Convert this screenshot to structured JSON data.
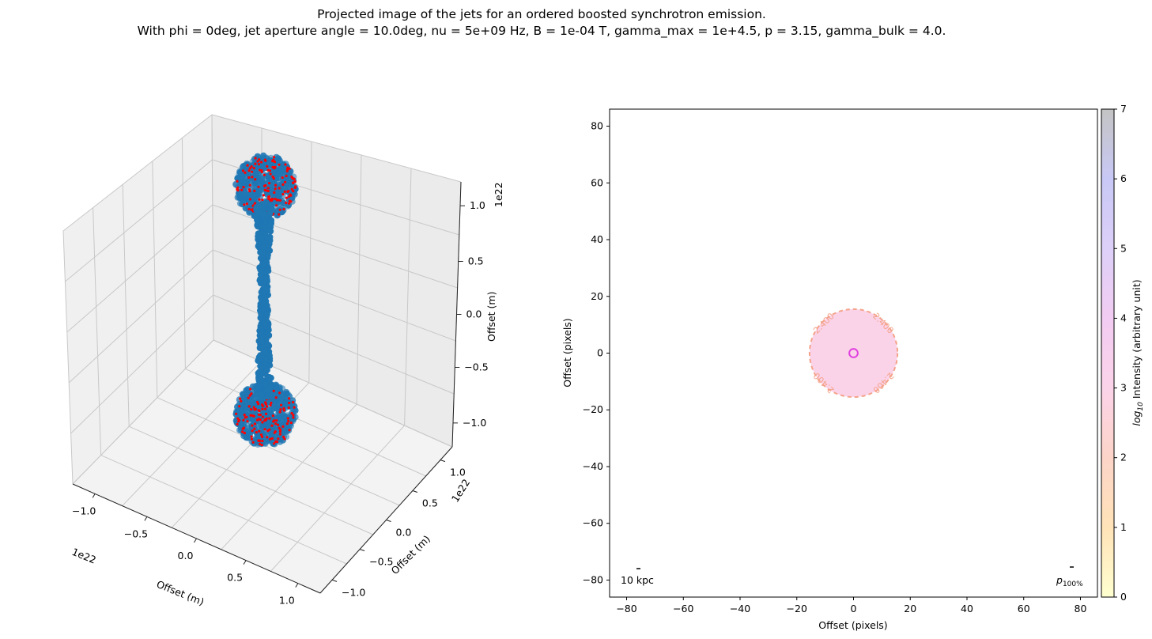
{
  "figure": {
    "title_line1": "Projected image of the jets for an ordered boosted synchrotron emission.",
    "title_line2": "With phi = 0deg, jet aperture angle = 10.0deg, nu = 5e+09 Hz, B = 1e-04 T, gamma_max = 1e+4.5, p = 3.15, gamma_bulk = 4.0."
  },
  "chart_data": [
    {
      "type": "scatter3d",
      "title": "",
      "xlabel": "Offset (m)",
      "ylabel": "Offset (m)",
      "zlabel": "Offset (m)",
      "x_offset_label": "1e22",
      "y_offset_label": "1e22",
      "z_offset_label": "1e22",
      "x_ticks": [
        "−1.0",
        "−0.5",
        "0.0",
        "0.5",
        "1.0"
      ],
      "y_ticks": [
        "−1.0",
        "−0.5",
        "0.0",
        "0.5",
        "1.0"
      ],
      "z_ticks": [
        "−1.0",
        "−0.5",
        "0.0",
        "0.5",
        "1.0"
      ],
      "xlim": [
        -1.1,
        1.1
      ],
      "ylim": [
        -1.1,
        1.1
      ],
      "zlim": [
        -1.1,
        1.1
      ],
      "series": [
        {
          "name": "jet particles",
          "color": "#1f77b4",
          "description_units": "1e22 m",
          "components": [
            {
              "kind": "lobe",
              "z_center": 0.72,
              "radius": 0.28
            },
            {
              "kind": "stem",
              "z_from": -0.55,
              "z_to": 0.55
            },
            {
              "kind": "lobe",
              "z_center": -0.72,
              "radius": 0.28
            }
          ]
        },
        {
          "name": "emitting particles",
          "color": "#ff0000"
        }
      ]
    },
    {
      "type": "heatmap",
      "title": "",
      "xlabel": "Offset (pixels)",
      "ylabel": "Offset (pixels)",
      "xlim": [
        -86,
        86
      ],
      "ylim": [
        -86,
        86
      ],
      "x_ticks": [
        -80,
        -60,
        -40,
        -20,
        0,
        20,
        40,
        60,
        80
      ],
      "y_ticks": [
        -80,
        -60,
        -40,
        -20,
        0,
        20,
        40,
        60,
        80
      ],
      "x_tick_labels": [
        "−80",
        "−60",
        "−40",
        "−20",
        "0",
        "20",
        "40",
        "60",
        "80"
      ],
      "y_tick_labels": [
        "−80",
        "−60",
        "−40",
        "−20",
        "0",
        "20",
        "40",
        "60",
        "80"
      ],
      "emission_disk": {
        "center": [
          0,
          0
        ],
        "radius": 15.5,
        "fill": "#fbd3e9"
      },
      "core_ring": {
        "center": [
          0,
          0
        ],
        "radius": 1.5,
        "color": "#e040e0"
      },
      "contour": {
        "level": 2.4,
        "label": "2.400",
        "color": "#f4a38a",
        "label_angles_deg": [
          45,
          135,
          225,
          315
        ]
      },
      "scale_bar_label": "10 kpc",
      "polarization_label": "p",
      "polarization_subscript": "100%",
      "colorbar": {
        "label_prefix": "log",
        "label_sub": "10",
        "label_suffix": " Intensity (arbitrary unit)",
        "min": 0,
        "max": 7,
        "ticks": [
          0,
          1,
          2,
          3,
          4,
          5,
          6,
          7
        ],
        "tick_labels": [
          "0",
          "1",
          "2",
          "3",
          "4",
          "5",
          "6",
          "7"
        ],
        "colors": [
          "#ffffd0",
          "#ffe3b8",
          "#fcd4c8",
          "#fbd3e9",
          "#f2ccf2",
          "#ddd0f8",
          "#c8c8f6",
          "#c4c4c4"
        ]
      }
    }
  ]
}
